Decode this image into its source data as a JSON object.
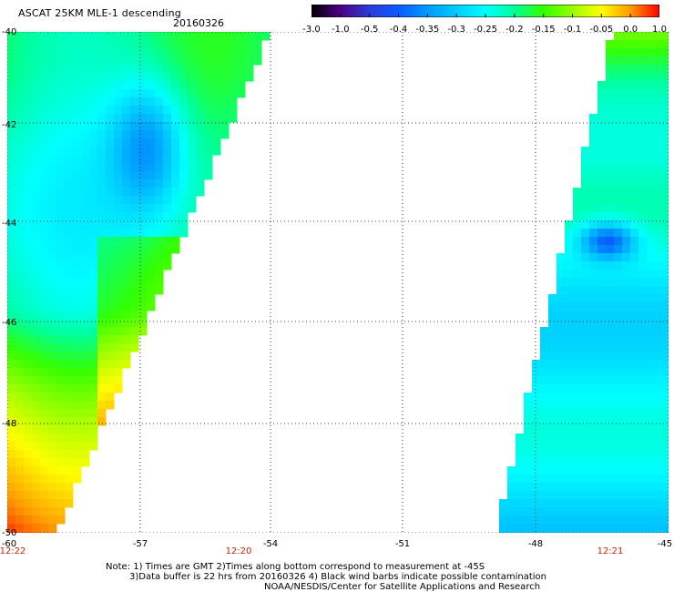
{
  "title": "ASCAT 25KM MLE-1 descending",
  "date": "20160326",
  "colorbar": {
    "labels": [
      "-3.0",
      "-1.0",
      "-0.5",
      "-0.4",
      "-0.35",
      "-0.3",
      "-0.25",
      "-0.2",
      "-0.15",
      "-0.1",
      "-0.05",
      "0.0",
      "1.0"
    ],
    "colors": [
      "#000000",
      "#4b0082",
      "#2b3bd6",
      "#0a5aff",
      "#0099ff",
      "#00ccff",
      "#00ffff",
      "#00ff99",
      "#33ff00",
      "#99ff00",
      "#ffff00",
      "#ff9900",
      "#ff0000"
    ]
  },
  "axes": {
    "lat_ticks": [
      "-40",
      "-42",
      "-44",
      "-46",
      "-48",
      "-50"
    ],
    "lon_ticks": [
      "-60",
      "-57",
      "-54",
      "-51",
      "-48",
      "-45"
    ]
  },
  "times": [
    "12:22",
    "12:20",
    "12:21"
  ],
  "notes": [
    "Note: 1) Times are GMT 2)Times along bottom correspond to measurement at -45S",
    "3)Data buffer is 22 hrs from 20160326 4) Black wind barbs indicate possible contamination",
    "NOAA/NESDIS/Center for Satellite Applications and Research"
  ]
}
